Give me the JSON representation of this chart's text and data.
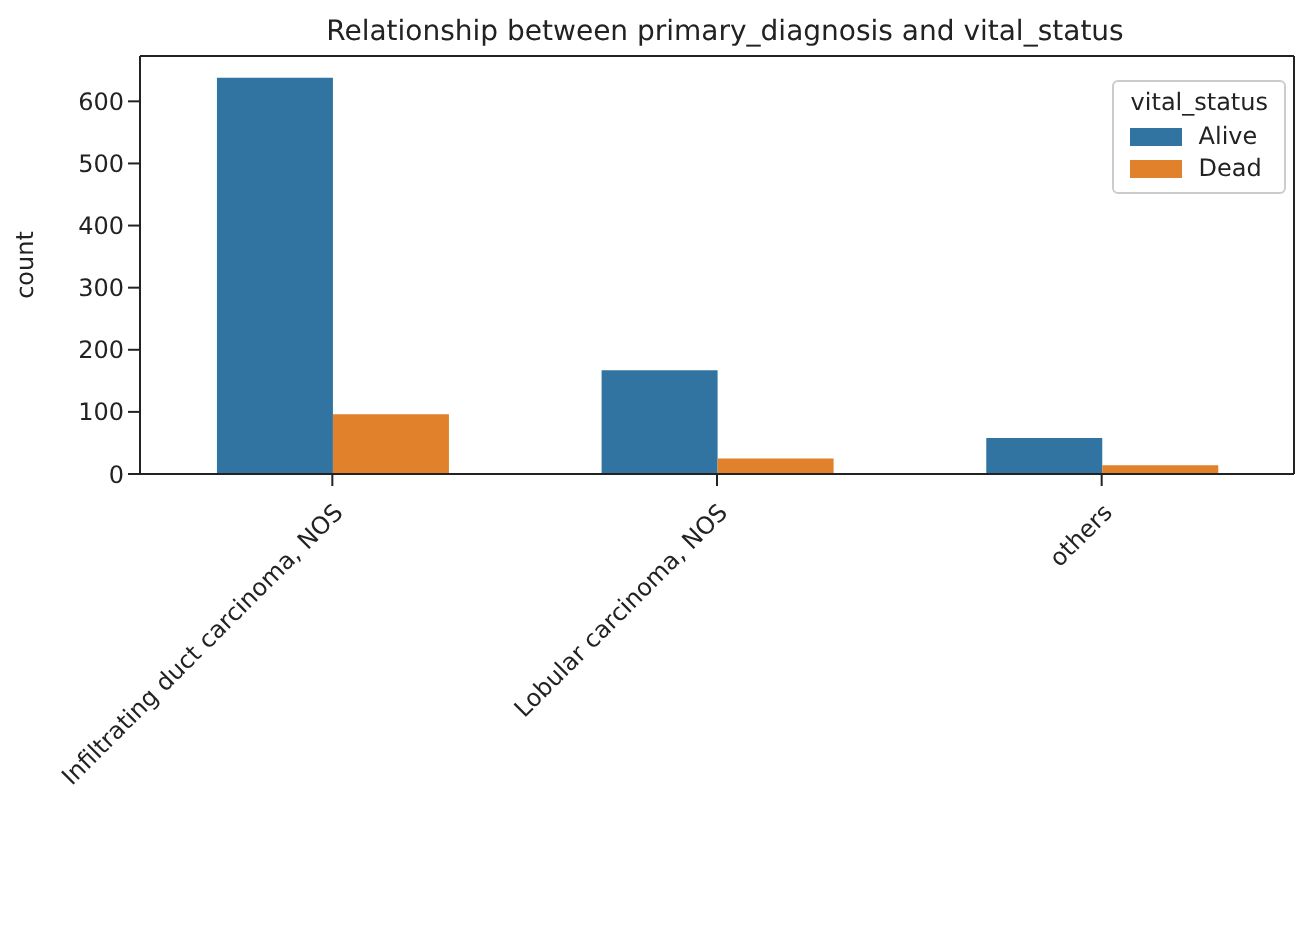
{
  "chart_data": {
    "type": "bar",
    "title": "Relationship between primary_diagnosis and vital_status",
    "ylabel": "count",
    "legend_title": "vital_status",
    "categories": [
      "Infiltrating duct carcinoma, NOS",
      "Lobular carcinoma, NOS",
      "others"
    ],
    "series": [
      {
        "name": "Alive",
        "color": "#3274a1",
        "values": [
          638,
          167,
          58
        ]
      },
      {
        "name": "Dead",
        "color": "#e1812c",
        "values": [
          96,
          25,
          14
        ]
      }
    ],
    "ylim": [
      0,
      673
    ],
    "yticks": [
      0,
      100,
      200,
      300,
      400,
      500,
      600
    ],
    "grid": false,
    "legend": "top right"
  }
}
